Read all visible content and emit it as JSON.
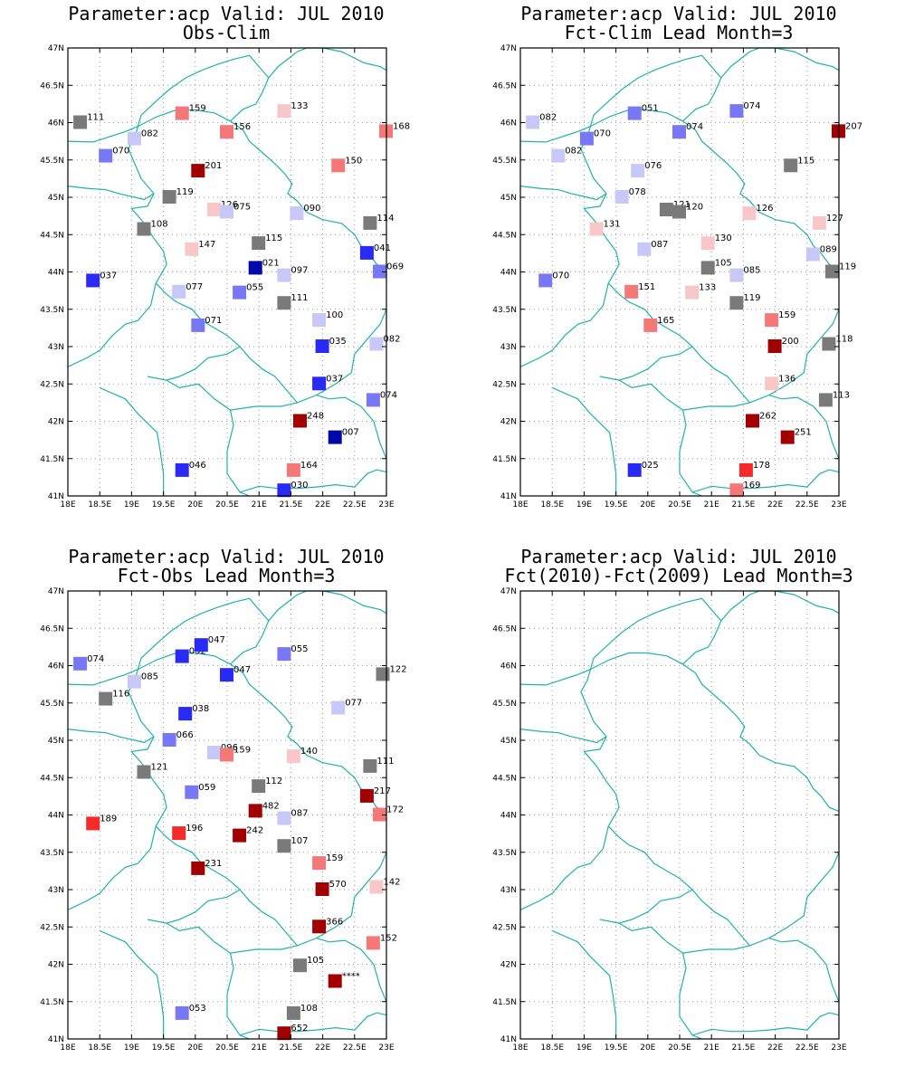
{
  "colors": {
    "border": "#20b2aa",
    "grid": "#9a9a9a",
    "frame": "#000000",
    "scale": {
      "dark_blue": "#0008a8",
      "blue": "#2a2af5",
      "mid_blue": "#7878f5",
      "light_blue": "#c8c8f8",
      "gray": "#7a7a7a",
      "light_red": "#f8c8c8",
      "mid_red": "#f57878",
      "red": "#f52a2a",
      "dark_red": "#a00000"
    }
  },
  "axes": {
    "lon_range": [
      18,
      23
    ],
    "lat_range": [
      41,
      47
    ],
    "lon_ticks": [
      "18E",
      "18.5E",
      "19E",
      "19.5E",
      "20E",
      "20.5E",
      "21E",
      "21.5E",
      "22E",
      "22.5E",
      "23E"
    ],
    "lat_ticks": [
      "41N",
      "41.5N",
      "42N",
      "42.5N",
      "43N",
      "43.5N",
      "44N",
      "44.5N",
      "45N",
      "45.5N",
      "46N",
      "46.5N",
      "47N"
    ]
  },
  "panels": [
    {
      "title_line1": "Parameter:acp Valid: JUL 2010",
      "title_line2": "Obs-Clim",
      "stations": [
        {
          "lon": 18.2,
          "lat": 46.0,
          "label": "111",
          "cls": "gray"
        },
        {
          "lon": 19.8,
          "lat": 46.12,
          "label": "159",
          "cls": "mid_red"
        },
        {
          "lon": 21.4,
          "lat": 46.15,
          "label": "133",
          "cls": "light_red"
        },
        {
          "lon": 23.0,
          "lat": 45.88,
          "label": "168",
          "cls": "mid_red"
        },
        {
          "lon": 19.05,
          "lat": 45.78,
          "label": "082",
          "cls": "light_blue"
        },
        {
          "lon": 20.5,
          "lat": 45.87,
          "label": "156",
          "cls": "mid_red"
        },
        {
          "lon": 18.6,
          "lat": 45.55,
          "label": "070",
          "cls": "mid_blue"
        },
        {
          "lon": 20.05,
          "lat": 45.35,
          "label": "201",
          "cls": "dark_red"
        },
        {
          "lon": 22.25,
          "lat": 45.42,
          "label": "150",
          "cls": "mid_red"
        },
        {
          "lon": 19.6,
          "lat": 45.0,
          "label": "119",
          "cls": "gray"
        },
        {
          "lon": 20.3,
          "lat": 44.83,
          "label": "126",
          "cls": "light_red"
        },
        {
          "lon": 20.5,
          "lat": 44.8,
          "label": "075",
          "cls": "light_blue"
        },
        {
          "lon": 21.6,
          "lat": 44.78,
          "label": "090",
          "cls": "light_blue"
        },
        {
          "lon": 22.75,
          "lat": 44.65,
          "label": "114",
          "cls": "gray"
        },
        {
          "lon": 19.2,
          "lat": 44.57,
          "label": "108",
          "cls": "gray"
        },
        {
          "lon": 19.95,
          "lat": 44.3,
          "label": "147",
          "cls": "light_red"
        },
        {
          "lon": 21.0,
          "lat": 44.38,
          "label": "115",
          "cls": "gray"
        },
        {
          "lon": 22.7,
          "lat": 44.25,
          "label": "041",
          "cls": "blue"
        },
        {
          "lon": 20.95,
          "lat": 44.05,
          "label": "021",
          "cls": "dark_blue"
        },
        {
          "lon": 21.4,
          "lat": 43.95,
          "label": "097",
          "cls": "light_blue"
        },
        {
          "lon": 22.9,
          "lat": 44.0,
          "label": "069",
          "cls": "mid_blue"
        },
        {
          "lon": 18.4,
          "lat": 43.88,
          "label": "037",
          "cls": "blue"
        },
        {
          "lon": 19.75,
          "lat": 43.73,
          "label": "077",
          "cls": "light_blue"
        },
        {
          "lon": 20.7,
          "lat": 43.72,
          "label": "055",
          "cls": "mid_blue"
        },
        {
          "lon": 21.4,
          "lat": 43.58,
          "label": "111",
          "cls": "gray"
        },
        {
          "lon": 20.05,
          "lat": 43.28,
          "label": "071",
          "cls": "mid_blue"
        },
        {
          "lon": 21.95,
          "lat": 43.35,
          "label": "100",
          "cls": "light_blue"
        },
        {
          "lon": 22.0,
          "lat": 43.0,
          "label": "035",
          "cls": "blue"
        },
        {
          "lon": 22.85,
          "lat": 43.03,
          "label": "082",
          "cls": "light_blue"
        },
        {
          "lon": 21.95,
          "lat": 42.5,
          "label": "037",
          "cls": "blue"
        },
        {
          "lon": 22.8,
          "lat": 42.28,
          "label": "074",
          "cls": "mid_blue"
        },
        {
          "lon": 21.65,
          "lat": 42.0,
          "label": "248",
          "cls": "dark_red"
        },
        {
          "lon": 22.2,
          "lat": 41.78,
          "label": "007",
          "cls": "dark_blue"
        },
        {
          "lon": 19.8,
          "lat": 41.34,
          "label": "046",
          "cls": "blue"
        },
        {
          "lon": 21.55,
          "lat": 41.34,
          "label": "164",
          "cls": "mid_red"
        },
        {
          "lon": 21.4,
          "lat": 41.07,
          "label": "030",
          "cls": "blue"
        }
      ]
    },
    {
      "title_line1": "Parameter:acp Valid: JUL 2010",
      "title_line2": "Fct-Clim Lead Month=3",
      "stations": [
        {
          "lon": 18.2,
          "lat": 46.0,
          "label": "082",
          "cls": "light_blue"
        },
        {
          "lon": 19.8,
          "lat": 46.12,
          "label": "051",
          "cls": "mid_blue"
        },
        {
          "lon": 21.4,
          "lat": 46.15,
          "label": "074",
          "cls": "mid_blue"
        },
        {
          "lon": 23.0,
          "lat": 45.88,
          "label": "207",
          "cls": "dark_red"
        },
        {
          "lon": 19.05,
          "lat": 45.78,
          "label": "070",
          "cls": "mid_blue"
        },
        {
          "lon": 20.5,
          "lat": 45.87,
          "label": "074",
          "cls": "mid_blue"
        },
        {
          "lon": 18.6,
          "lat": 45.55,
          "label": "082",
          "cls": "light_blue"
        },
        {
          "lon": 19.85,
          "lat": 45.35,
          "label": "076",
          "cls": "light_blue"
        },
        {
          "lon": 22.25,
          "lat": 45.42,
          "label": "115",
          "cls": "gray"
        },
        {
          "lon": 19.6,
          "lat": 45.0,
          "label": "078",
          "cls": "light_blue"
        },
        {
          "lon": 20.3,
          "lat": 44.83,
          "label": "121",
          "cls": "gray"
        },
        {
          "lon": 20.5,
          "lat": 44.8,
          "label": "120",
          "cls": "gray"
        },
        {
          "lon": 21.6,
          "lat": 44.78,
          "label": "126",
          "cls": "light_red"
        },
        {
          "lon": 22.7,
          "lat": 44.65,
          "label": "127",
          "cls": "light_red"
        },
        {
          "lon": 19.2,
          "lat": 44.57,
          "label": "131",
          "cls": "light_red"
        },
        {
          "lon": 19.95,
          "lat": 44.3,
          "label": "087",
          "cls": "light_blue"
        },
        {
          "lon": 20.95,
          "lat": 44.38,
          "label": "130",
          "cls": "light_red"
        },
        {
          "lon": 22.6,
          "lat": 44.23,
          "label": "089",
          "cls": "light_blue"
        },
        {
          "lon": 20.95,
          "lat": 44.05,
          "label": "105",
          "cls": "gray"
        },
        {
          "lon": 21.4,
          "lat": 43.95,
          "label": "085",
          "cls": "light_blue"
        },
        {
          "lon": 22.9,
          "lat": 44.0,
          "label": "119",
          "cls": "gray"
        },
        {
          "lon": 18.4,
          "lat": 43.88,
          "label": "070",
          "cls": "mid_blue"
        },
        {
          "lon": 19.75,
          "lat": 43.73,
          "label": "151",
          "cls": "mid_red"
        },
        {
          "lon": 20.7,
          "lat": 43.72,
          "label": "133",
          "cls": "light_red"
        },
        {
          "lon": 21.4,
          "lat": 43.58,
          "label": "119",
          "cls": "gray"
        },
        {
          "lon": 20.05,
          "lat": 43.28,
          "label": "165",
          "cls": "mid_red"
        },
        {
          "lon": 21.95,
          "lat": 43.35,
          "label": "159",
          "cls": "mid_red"
        },
        {
          "lon": 22.0,
          "lat": 43.0,
          "label": "200",
          "cls": "dark_red"
        },
        {
          "lon": 22.85,
          "lat": 43.03,
          "label": "118",
          "cls": "gray"
        },
        {
          "lon": 21.95,
          "lat": 42.5,
          "label": "136",
          "cls": "light_red"
        },
        {
          "lon": 22.8,
          "lat": 42.28,
          "label": "113",
          "cls": "gray"
        },
        {
          "lon": 21.65,
          "lat": 42.0,
          "label": "262",
          "cls": "dark_red"
        },
        {
          "lon": 22.2,
          "lat": 41.78,
          "label": "251",
          "cls": "dark_red"
        },
        {
          "lon": 19.8,
          "lat": 41.34,
          "label": "025",
          "cls": "blue"
        },
        {
          "lon": 21.55,
          "lat": 41.34,
          "label": "178",
          "cls": "red"
        },
        {
          "lon": 21.4,
          "lat": 41.07,
          "label": "169",
          "cls": "mid_red"
        }
      ]
    },
    {
      "title_line1": "Parameter:acp Valid: JUL 2010",
      "title_line2": "Fct-Obs Lead Month=3",
      "stations": [
        {
          "lon": 18.2,
          "lat": 46.02,
          "label": "074",
          "cls": "mid_blue"
        },
        {
          "lon": 19.8,
          "lat": 46.12,
          "label": "032",
          "cls": "blue"
        },
        {
          "lon": 20.1,
          "lat": 46.27,
          "label": "047",
          "cls": "blue"
        },
        {
          "lon": 21.4,
          "lat": 46.15,
          "label": "055",
          "cls": "mid_blue"
        },
        {
          "lon": 22.95,
          "lat": 45.88,
          "label": "122",
          "cls": "gray"
        },
        {
          "lon": 19.05,
          "lat": 45.78,
          "label": "085",
          "cls": "light_blue"
        },
        {
          "lon": 20.5,
          "lat": 45.87,
          "label": "047",
          "cls": "blue"
        },
        {
          "lon": 18.6,
          "lat": 45.55,
          "label": "116",
          "cls": "gray"
        },
        {
          "lon": 22.25,
          "lat": 45.43,
          "label": "077",
          "cls": "light_blue"
        },
        {
          "lon": 19.85,
          "lat": 45.35,
          "label": "038",
          "cls": "blue"
        },
        {
          "lon": 19.6,
          "lat": 45.0,
          "label": "066",
          "cls": "mid_blue"
        },
        {
          "lon": 20.3,
          "lat": 44.83,
          "label": "096",
          "cls": "light_blue"
        },
        {
          "lon": 20.5,
          "lat": 44.8,
          "label": "159",
          "cls": "mid_red"
        },
        {
          "lon": 21.55,
          "lat": 44.78,
          "label": "140",
          "cls": "light_red"
        },
        {
          "lon": 22.75,
          "lat": 44.65,
          "label": "111",
          "cls": "gray"
        },
        {
          "lon": 19.2,
          "lat": 44.57,
          "label": "121",
          "cls": "gray"
        },
        {
          "lon": 21.0,
          "lat": 44.38,
          "label": "112",
          "cls": "gray"
        },
        {
          "lon": 22.7,
          "lat": 44.25,
          "label": "217",
          "cls": "dark_red"
        },
        {
          "lon": 19.95,
          "lat": 44.3,
          "label": "059",
          "cls": "mid_blue"
        },
        {
          "lon": 20.95,
          "lat": 44.05,
          "label": "482",
          "cls": "dark_red"
        },
        {
          "lon": 21.4,
          "lat": 43.95,
          "label": "087",
          "cls": "light_blue"
        },
        {
          "lon": 22.9,
          "lat": 44.0,
          "label": "172",
          "cls": "mid_red"
        },
        {
          "lon": 18.4,
          "lat": 43.88,
          "label": "189",
          "cls": "red"
        },
        {
          "lon": 19.75,
          "lat": 43.75,
          "label": "196",
          "cls": "red"
        },
        {
          "lon": 20.7,
          "lat": 43.72,
          "label": "242",
          "cls": "dark_red"
        },
        {
          "lon": 21.4,
          "lat": 43.58,
          "label": "107",
          "cls": "gray"
        },
        {
          "lon": 20.05,
          "lat": 43.28,
          "label": "231",
          "cls": "dark_red"
        },
        {
          "lon": 21.95,
          "lat": 43.35,
          "label": "159",
          "cls": "mid_red"
        },
        {
          "lon": 22.0,
          "lat": 43.0,
          "label": "570",
          "cls": "dark_red"
        },
        {
          "lon": 22.85,
          "lat": 43.03,
          "label": "142",
          "cls": "light_red"
        },
        {
          "lon": 21.95,
          "lat": 42.5,
          "label": "366",
          "cls": "dark_red"
        },
        {
          "lon": 22.8,
          "lat": 42.28,
          "label": "152",
          "cls": "mid_red"
        },
        {
          "lon": 21.65,
          "lat": 41.98,
          "label": "105",
          "cls": "gray"
        },
        {
          "lon": 22.2,
          "lat": 41.77,
          "label": "****",
          "cls": "dark_red"
        },
        {
          "lon": 19.8,
          "lat": 41.34,
          "label": "053",
          "cls": "mid_blue"
        },
        {
          "lon": 21.55,
          "lat": 41.34,
          "label": "108",
          "cls": "gray"
        },
        {
          "lon": 21.4,
          "lat": 41.07,
          "label": "652",
          "cls": "dark_red"
        }
      ]
    },
    {
      "title_line1": "Parameter:acp Valid: JUL 2010",
      "title_line2": "Fct(2010)-Fct(2009) Lead Month=3",
      "stations": []
    }
  ]
}
